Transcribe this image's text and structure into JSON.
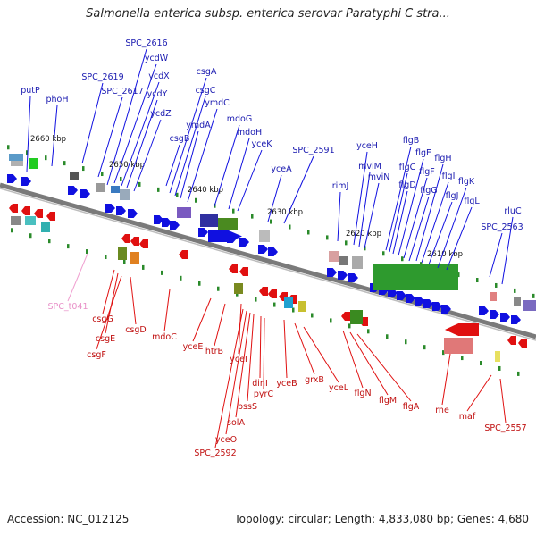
{
  "title": "Salmonella enterica subsp. enterica serovar Paratyphi C stra...",
  "footer": {
    "accession": "Accession: NC_012125",
    "topology": "Topology: circular; Length: 4,833,080 bp; Genes: 4,680"
  },
  "colors": {
    "forward_gene": "#1010e0",
    "reverse_gene": "#e01010",
    "rna_gene": "#f0a0d0",
    "backbone": "#7a7a7a",
    "tick": "#2a8a2a"
  },
  "kbp_labels": [
    "2660 kbp",
    "2650 kbp",
    "2640 kbp",
    "2630 kbp",
    "2620 kbp",
    "2610 kbp"
  ],
  "forward_labels": [
    "putP",
    "phoH",
    "SPC_2619",
    "SPC_2617",
    "SPC_2616",
    "ycdW",
    "ycdX",
    "ycdY",
    "ycdZ",
    "csgA",
    "csgC",
    "ymdA",
    "csgB",
    "ymdC",
    "mdoG",
    "mdoH",
    "yceK",
    "yceA",
    "SPC_2591",
    "rimJ",
    "yceH",
    "mviM",
    "mviN",
    "flgB",
    "flgC",
    "flgD",
    "flgE",
    "flgF",
    "flgG",
    "flgH",
    "flgI",
    "flgJ",
    "flgK",
    "flgL",
    "rluC",
    "SPC_2563"
  ],
  "reverse_labels": [
    "SPC_t041",
    "csgG",
    "csgE",
    "csgF",
    "csgD",
    "mdoC",
    "yceE",
    "htrB",
    "yceI",
    "dinI",
    "pyrC",
    "bssS",
    "solA",
    "yceO",
    "SPC_2592",
    "yceB",
    "grxB",
    "yceL",
    "flgN",
    "flgM",
    "flgA",
    "rne",
    "maf",
    "SPC_2557"
  ]
}
